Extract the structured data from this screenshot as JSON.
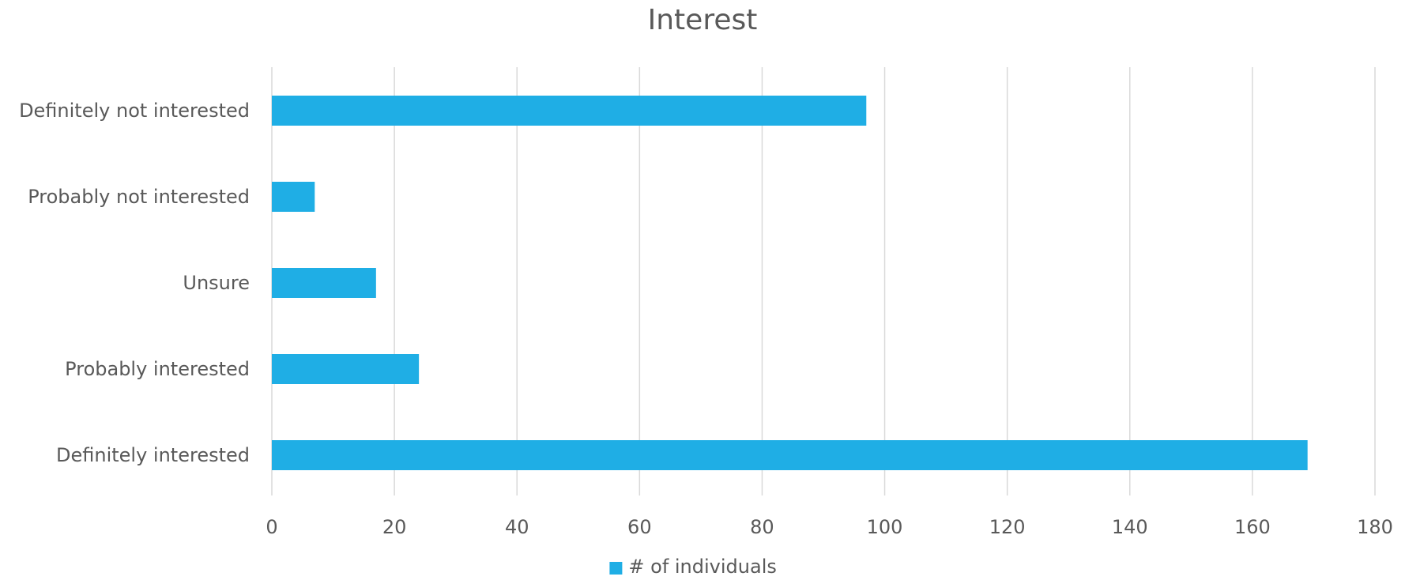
{
  "chart_data": {
    "type": "bar",
    "orientation": "horizontal",
    "title": "Interest",
    "categories": [
      "Definitely not interested",
      "Probably not interested",
      "Unsure",
      "Probably interested",
      "Definitely interested"
    ],
    "series": [
      {
        "name": "# of individuals",
        "values": [
          97,
          7,
          17,
          24,
          169
        ],
        "color": "#1FAEE5"
      }
    ],
    "xlim": [
      0,
      180
    ],
    "x_ticks": [
      0,
      20,
      40,
      60,
      80,
      100,
      120,
      140,
      160,
      180
    ],
    "grid": true,
    "grid_color": "#D9D9D9",
    "legend_position": "bottom",
    "xlabel": "",
    "ylabel": ""
  }
}
